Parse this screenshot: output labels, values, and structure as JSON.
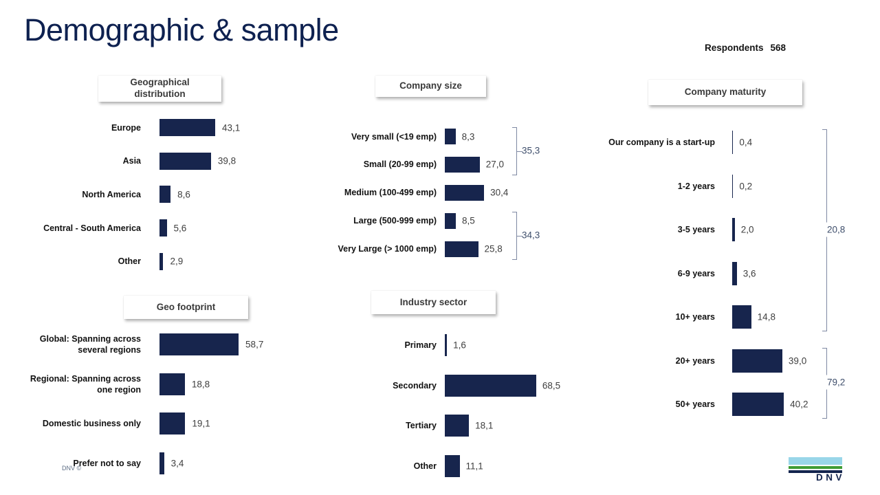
{
  "slide": {
    "title": "Demographic & sample",
    "respondents_label": "Respondents",
    "respondents_value": "568",
    "footer_note": "DNV ©",
    "logo_text": "DNV"
  },
  "colors": {
    "bar": "#17254D",
    "title": "#0E2150",
    "bracket_line": "#7E88A2",
    "bracket_text": "#3E4E6B",
    "logo_light_blue": "#99D6E9",
    "logo_green": "#3F9C35",
    "logo_navy": "#14254E"
  },
  "chart_data": [
    {
      "id": "geographical-distribution",
      "type": "bar",
      "orientation": "horizontal",
      "title": "Geographical distribution",
      "unit": "percent",
      "decimal_separator": ",",
      "categories": [
        "Europe",
        "Asia",
        "North America",
        "Central - South America",
        "Other"
      ],
      "values": [
        43.1,
        39.8,
        8.6,
        5.6,
        2.9
      ]
    },
    {
      "id": "company-size",
      "type": "bar",
      "orientation": "horizontal",
      "title": "Company size",
      "unit": "percent",
      "decimal_separator": ",",
      "categories": [
        "Very small (<19 emp)",
        "Small (20-99 emp)",
        "Medium (100-499 emp)",
        "Large (500-999 emp)",
        "Very Large (> 1000 emp)"
      ],
      "values": [
        8.3,
        27.0,
        30.4,
        8.5,
        25.8
      ],
      "brackets": [
        {
          "from": 0,
          "to": 1,
          "value": 35.3
        },
        {
          "from": 3,
          "to": 4,
          "value": 34.3
        }
      ]
    },
    {
      "id": "company-maturity",
      "type": "bar",
      "orientation": "horizontal",
      "title": "Company maturity",
      "unit": "percent",
      "decimal_separator": ",",
      "categories": [
        "Our company is a start-up",
        "1-2 years",
        "3-5 years",
        "6-9 years",
        "10+ years",
        "20+ years",
        "50+ years"
      ],
      "values": [
        0.4,
        0.2,
        2.0,
        3.6,
        14.8,
        39.0,
        40.2
      ],
      "brackets": [
        {
          "from": 0,
          "to": 4,
          "value": 20.8
        },
        {
          "from": 5,
          "to": 6,
          "value": 79.2
        }
      ]
    },
    {
      "id": "geo-footprint",
      "type": "bar",
      "orientation": "horizontal",
      "title": "Geo footprint",
      "unit": "percent",
      "decimal_separator": ",",
      "categories": [
        "Global: Spanning across several regions",
        "Regional: Spanning across one region",
        "Domestic business only",
        "Prefer not to say"
      ],
      "values": [
        58.7,
        18.8,
        19.1,
        3.4
      ]
    },
    {
      "id": "industry-sector",
      "type": "bar",
      "orientation": "horizontal",
      "title": "Industry sector",
      "unit": "percent",
      "decimal_separator": ",",
      "categories": [
        "Primary",
        "Secondary",
        "Tertiary",
        "Other"
      ],
      "values": [
        1.6,
        68.5,
        18.1,
        11.1
      ]
    }
  ]
}
